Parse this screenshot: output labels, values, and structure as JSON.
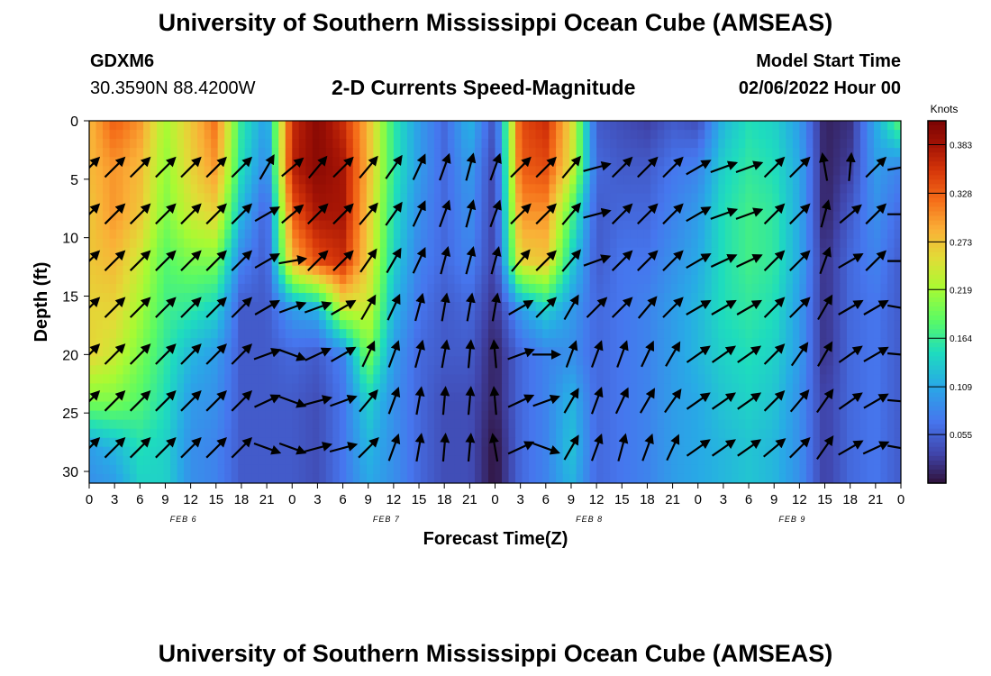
{
  "page": {
    "title": "University of Southern Mississippi Ocean Cube (AMSEAS)",
    "title_repeat": "University of Southern Mississippi Ocean Cube (AMSEAS)",
    "station": "GDXM6",
    "coords": "30.3590N  88.4200W",
    "subtitle": "2-D Currents Speed-Magnitude",
    "model_start_label": "Model Start Time",
    "model_start_value": "02/06/2022 Hour 00"
  },
  "chart_data": {
    "type": "heatmap",
    "title": "2-D Currents Speed-Magnitude",
    "xlabel": "Forecast Time(Z)",
    "ylabel": "Depth (ft)",
    "x_tick_labels": [
      "0",
      "3",
      "6",
      "9",
      "12",
      "15",
      "18",
      "21",
      "0",
      "3",
      "6",
      "9",
      "12",
      "15",
      "18",
      "21",
      "0",
      "3",
      "6",
      "9",
      "12",
      "15",
      "18",
      "21",
      "0",
      "3",
      "6",
      "9",
      "12",
      "15",
      "18",
      "21",
      "0"
    ],
    "date_labels": [
      {
        "label": "FEB 6",
        "tick_index": 4
      },
      {
        "label": "FEB 7",
        "tick_index": 12
      },
      {
        "label": "FEB 8",
        "tick_index": 20
      },
      {
        "label": "FEB 9",
        "tick_index": 28
      }
    ],
    "x_range_hours": [
      0,
      96
    ],
    "y_range_ft": [
      0,
      31
    ],
    "y_ticks": [
      0,
      5,
      10,
      15,
      20,
      25,
      30
    ],
    "colorbar": {
      "unit": "Knots",
      "min": 0,
      "max": 0.41,
      "tick_labels": [
        "0.383",
        "0.328",
        "0.273",
        "0.219",
        "0.164",
        "0.109",
        "0.055"
      ],
      "tick_values": [
        0.383,
        0.328,
        0.273,
        0.219,
        0.164,
        0.109,
        0.055
      ]
    },
    "speed_grid": {
      "hours": [
        0,
        3,
        6,
        9,
        12,
        15,
        18,
        21,
        24,
        27,
        30,
        33,
        36,
        39,
        42,
        45,
        48,
        51,
        54,
        57,
        60,
        63,
        66,
        69,
        72,
        75,
        78,
        81,
        84,
        87,
        90,
        93,
        96
      ],
      "depths_ft": [
        0,
        4,
        8,
        12,
        16,
        20,
        24,
        28,
        31
      ],
      "values": [
        [
          0.28,
          0.33,
          0.3,
          0.22,
          0.27,
          0.32,
          0.16,
          0.1,
          0.36,
          0.4,
          0.36,
          0.28,
          0.16,
          0.1,
          0.06,
          0.12,
          0.04,
          0.34,
          0.36,
          0.26,
          0.05,
          0.04,
          0.03,
          0.05,
          0.04,
          0.12,
          0.15,
          0.14,
          0.1,
          0.01,
          0.02,
          0.11,
          0.19
        ],
        [
          0.28,
          0.3,
          0.28,
          0.21,
          0.26,
          0.3,
          0.15,
          0.08,
          0.37,
          0.4,
          0.38,
          0.28,
          0.16,
          0.1,
          0.06,
          0.1,
          0.03,
          0.33,
          0.34,
          0.25,
          0.06,
          0.05,
          0.05,
          0.07,
          0.08,
          0.14,
          0.16,
          0.15,
          0.11,
          0.01,
          0.03,
          0.1,
          0.08
        ],
        [
          0.27,
          0.3,
          0.27,
          0.2,
          0.24,
          0.26,
          0.12,
          0.05,
          0.33,
          0.38,
          0.38,
          0.27,
          0.15,
          0.09,
          0.06,
          0.09,
          0.03,
          0.3,
          0.3,
          0.18,
          0.05,
          0.06,
          0.06,
          0.08,
          0.1,
          0.15,
          0.17,
          0.16,
          0.11,
          0.01,
          0.05,
          0.09,
          0.06
        ],
        [
          0.27,
          0.28,
          0.24,
          0.18,
          0.2,
          0.2,
          0.08,
          0.05,
          0.28,
          0.34,
          0.36,
          0.26,
          0.14,
          0.08,
          0.06,
          0.08,
          0.03,
          0.26,
          0.27,
          0.14,
          0.05,
          0.07,
          0.07,
          0.09,
          0.11,
          0.15,
          0.17,
          0.16,
          0.11,
          0.02,
          0.06,
          0.08,
          0.05
        ],
        [
          0.26,
          0.26,
          0.22,
          0.17,
          0.16,
          0.14,
          0.05,
          0.05,
          0.1,
          0.12,
          0.24,
          0.24,
          0.12,
          0.07,
          0.05,
          0.06,
          0.02,
          0.1,
          0.14,
          0.1,
          0.06,
          0.07,
          0.08,
          0.1,
          0.12,
          0.15,
          0.16,
          0.15,
          0.1,
          0.02,
          0.06,
          0.07,
          0.05
        ],
        [
          0.26,
          0.24,
          0.2,
          0.16,
          0.12,
          0.1,
          0.05,
          0.05,
          0.06,
          0.05,
          0.08,
          0.2,
          0.1,
          0.06,
          0.05,
          0.05,
          0.01,
          0.06,
          0.08,
          0.09,
          0.06,
          0.07,
          0.08,
          0.1,
          0.12,
          0.14,
          0.15,
          0.14,
          0.1,
          0.02,
          0.06,
          0.07,
          0.05
        ],
        [
          0.2,
          0.2,
          0.18,
          0.15,
          0.1,
          0.09,
          0.05,
          0.05,
          0.05,
          0.04,
          0.07,
          0.14,
          0.09,
          0.06,
          0.04,
          0.04,
          0.01,
          0.06,
          0.08,
          0.12,
          0.06,
          0.07,
          0.08,
          0.1,
          0.11,
          0.13,
          0.14,
          0.13,
          0.09,
          0.03,
          0.06,
          0.07,
          0.05
        ],
        [
          0.1,
          0.12,
          0.15,
          0.14,
          0.09,
          0.08,
          0.05,
          0.05,
          0.05,
          0.04,
          0.07,
          0.12,
          0.09,
          0.06,
          0.04,
          0.04,
          0.0,
          0.06,
          0.08,
          0.13,
          0.06,
          0.07,
          0.08,
          0.1,
          0.11,
          0.12,
          0.13,
          0.12,
          0.09,
          0.03,
          0.06,
          0.07,
          0.05
        ],
        [
          0.09,
          0.1,
          0.14,
          0.14,
          0.09,
          0.08,
          0.05,
          0.05,
          0.05,
          0.04,
          0.07,
          0.11,
          0.09,
          0.06,
          0.04,
          0.04,
          0.0,
          0.06,
          0.08,
          0.12,
          0.06,
          0.07,
          0.08,
          0.1,
          0.11,
          0.12,
          0.13,
          0.12,
          0.09,
          0.03,
          0.06,
          0.07,
          0.05
        ]
      ]
    },
    "vector_field": {
      "unit": "degrees clockwise from north (direction toward)",
      "hours": [
        0,
        3,
        6,
        9,
        12,
        15,
        18,
        21,
        24,
        27,
        30,
        33,
        36,
        39,
        42,
        45,
        48,
        51,
        54,
        57,
        60,
        63,
        66,
        69,
        72,
        75,
        78,
        81,
        84,
        87,
        90,
        93,
        96
      ],
      "depths_ft": [
        4,
        8,
        12,
        16,
        20,
        24,
        28
      ],
      "directions": [
        [
          45,
          45,
          45,
          45,
          45,
          45,
          45,
          30,
          50,
          40,
          45,
          40,
          35,
          25,
          20,
          15,
          20,
          45,
          45,
          40,
          75,
          45,
          45,
          45,
          60,
          70,
          70,
          45,
          45,
          -10,
          5,
          45,
          80
        ],
        [
          45,
          45,
          45,
          45,
          45,
          45,
          45,
          60,
          50,
          45,
          45,
          40,
          35,
          25,
          20,
          15,
          20,
          45,
          45,
          40,
          75,
          45,
          45,
          45,
          60,
          70,
          70,
          45,
          45,
          15,
          50,
          45,
          90
        ],
        [
          45,
          45,
          45,
          45,
          45,
          45,
          45,
          60,
          80,
          45,
          45,
          35,
          30,
          25,
          15,
          15,
          15,
          40,
          45,
          40,
          70,
          45,
          45,
          45,
          60,
          65,
          65,
          45,
          45,
          20,
          60,
          45,
          90
        ],
        [
          45,
          45,
          45,
          45,
          45,
          45,
          45,
          60,
          70,
          70,
          60,
          30,
          25,
          15,
          10,
          10,
          10,
          60,
          45,
          30,
          45,
          45,
          40,
          45,
          60,
          60,
          60,
          45,
          45,
          30,
          60,
          60,
          100
        ],
        [
          45,
          45,
          45,
          45,
          45,
          45,
          45,
          70,
          110,
          65,
          60,
          25,
          20,
          15,
          10,
          5,
          -5,
          70,
          90,
          20,
          20,
          20,
          25,
          30,
          55,
          55,
          55,
          45,
          35,
          30,
          55,
          60,
          95
        ],
        [
          45,
          45,
          45,
          45,
          45,
          45,
          45,
          65,
          110,
          75,
          70,
          40,
          20,
          10,
          5,
          5,
          -5,
          65,
          70,
          30,
          20,
          25,
          30,
          35,
          55,
          55,
          55,
          45,
          40,
          35,
          55,
          60,
          95
        ],
        [
          45,
          45,
          45,
          45,
          45,
          45,
          45,
          110,
          110,
          75,
          75,
          45,
          20,
          10,
          5,
          5,
          -10,
          65,
          110,
          30,
          20,
          15,
          20,
          25,
          55,
          55,
          55,
          50,
          45,
          35,
          60,
          65,
          100
        ]
      ]
    }
  }
}
